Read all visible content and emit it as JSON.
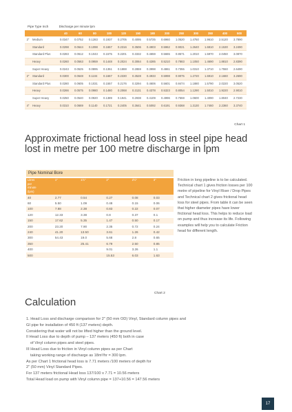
{
  "table1": {
    "caption_left": "Pipe Type Inch",
    "caption_right": "Discharge per minute lpm",
    "headers": [
      "",
      "",
      "40",
      "60",
      "80",
      "100",
      "120",
      "150",
      "180",
      "200",
      "250",
      "300",
      "350",
      "400",
      "500"
    ],
    "rows": [
      {
        "n": "2\"",
        "name": "Medium",
        "vals": [
          "0.0347",
          "0.0752",
          "0.1283",
          "0.1937",
          "0.2705",
          "0.4095",
          "0.5725",
          "0.6960",
          "1.0520",
          "1.4750",
          "1.9610",
          "2.5120",
          "3.7890"
        ]
      },
      {
        "n": "",
        "name": "Standard",
        "vals": [
          "0.0298",
          "0.0644",
          "0.1098",
          "0.1657",
          "0.2316",
          "0.3506",
          "0.4903",
          "0.5962",
          "0.9021",
          "1.2640",
          "1.6810",
          "2.1530",
          "3.2490"
        ]
      },
      {
        "n": "",
        "name": "Standard Plus",
        "vals": [
          "0.0283",
          "0.0612",
          "0.1043",
          "0.1575",
          "0.2201",
          "0.3332",
          "0.4659",
          "0.5665",
          "0.8571",
          "1.2010",
          "1.5970",
          "2.0450",
          "3.0870"
        ]
      },
      {
        "n": "",
        "name": "Heavy",
        "vals": [
          "0.0260",
          "0.0563",
          "0.0959",
          "0.1448",
          "0.2024",
          "0.3064",
          "0.4285",
          "0.5210",
          "0.7883",
          "1.1050",
          "1.4690",
          "1.8810",
          "2.8390"
        ]
      },
      {
        "n": "",
        "name": "Super Heavy",
        "vals": [
          "0.0243",
          "0.0525",
          "0.0895",
          "0.1351",
          "0.1888",
          "0.2859",
          "0.3998",
          "0.4861",
          "0.7355",
          "1.0310",
          "1.3710",
          "1.7550",
          "2.6490"
        ]
      },
      {
        "n": "2\"",
        "name": "Standard",
        "vals": [
          "0.0300",
          "0.0648",
          "0.1104",
          "0.1667",
          "0.2330",
          "0.3528",
          "0.4933",
          "0.5998",
          "0.9075",
          "1.2720",
          "1.6910",
          "2.1660",
          "3.2690"
        ]
      },
      {
        "n": "",
        "name": "Standard Plus",
        "vals": [
          "0.0280",
          "0.0605",
          "0.1031",
          "0.1557",
          "0.2176",
          "0.3294",
          "0.4606",
          "0.5601",
          "0.8474",
          "1.1880",
          "1.5790",
          "2.0220",
          "3.0520"
        ]
      },
      {
        "n": "",
        "name": "Heavy",
        "vals": [
          "0.0266",
          "0.0575",
          "0.0980",
          "0.1480",
          "0.2068",
          "0.3131",
          "0.4378",
          "0.5323",
          "0.8054",
          "1.1290",
          "1.5010",
          "1.9220",
          "2.9010"
        ]
      },
      {
        "n": "",
        "name": "Super Heavy",
        "vals": [
          "0.0250",
          "0.0540",
          "0.0920",
          "0.1389",
          "0.1941",
          "0.2938",
          "0.4109",
          "0.4996",
          "0.7559",
          "1.0600",
          "1.4090",
          "1.8040",
          "2.7230"
        ]
      },
      {
        "n": "4\"",
        "name": "Heavy",
        "vals": [
          "0.0310",
          "0.0669",
          "0.1140",
          "0.1721",
          "0.2405",
          "0.3641",
          "0.5092",
          "0.6191",
          "0.9368",
          "1.3130",
          "1.7460",
          "2.2360",
          "3.3740"
        ]
      }
    ],
    "caption_bottom": "Chart 1"
  },
  "heading": "Approximate frictional head loss in steel pipe head lost in metre per 100 metre discharge in lpm",
  "table2": {
    "label": "Pipe Nominal Bore",
    "header_first": "Litres\nper\nminute\n(lpm)",
    "headers": [
      "1\"",
      "1½\"",
      "2\"",
      "2½\"",
      "3\""
    ],
    "rows": [
      [
        "40",
        "2.77",
        "0.54",
        "0.27",
        "0.08",
        "0.03"
      ],
      [
        "60",
        "5.50",
        "1.09",
        "0.48",
        "0.15",
        "0.06"
      ],
      [
        "100",
        "7.88",
        "2.38",
        "0.83",
        "0.22",
        "0.07"
      ],
      [
        "120",
        "12.33",
        "3.38",
        "0.8",
        "0.37",
        "0.1"
      ],
      [
        "150",
        "17.62",
        "5.35",
        "1.47",
        "0.50",
        "0.17"
      ],
      [
        "200",
        "23.20",
        "7.90",
        "2.35",
        "0.72",
        "0.24"
      ],
      [
        "240",
        "41.20",
        "13.50",
        "3.61",
        "1.26",
        "0.42"
      ],
      [
        "300",
        "54.43",
        "19.0",
        "5.68",
        "2.8",
        "0.65"
      ],
      [
        "350",
        "",
        "25.41",
        "6.79",
        "2.50",
        "0.85"
      ],
      [
        "400",
        "",
        "",
        "9.01",
        "3.26",
        "1.1"
      ],
      [
        "500",
        "",
        "",
        "15.53",
        "6.03",
        "1.63"
      ]
    ],
    "caption_bottom": "Chart 2"
  },
  "paragraph": "Friction in long pipeline is to be calculated. Technical chart 1 gives friction losses per 100 metre of pipeline for Vinyl Riser / Drop Pipes and Technical chart 2 gives frictional head loss for steel pipes. From table it can be seen that higher diameter pipes have lower frictional head loss. This helps to reduce load on pump and thus increase its life. Following examples will help you to calculate Friction head for different length.",
  "calculation": {
    "title": "Calculation",
    "lines": [
      "1. Head Loss and discharge comparison for 2\" (50 mm OD) Vinyl, Standard column pipes and",
      "GI pipe for installation of 450 ft (137 meters) depth.",
      "Considering that water will not be lifted higher than the ground level.",
      "II  Head Loss due to depth of pump – 137 meters (450 ft) both in case",
      "of Vinyl column pipes and steel pipes.",
      "III  Head Loss due to friction in Vinyl column pipes as per Chart",
      "taking working range of discharge as 18m³/hr = 300 lpm.",
      "As per Chart 1 frictional head loss is 7.71 meters /100 meters of depth for",
      "2\" (50 mm) Vinyl Standard Pipes.",
      "For 137 meters frictional Head loss 137/100 x 7.71 = 10.56 meters",
      "Total Head load on pump with Vinyl column pipe = 137+10.56 = 147.56 meters"
    ]
  },
  "page_number": "17"
}
